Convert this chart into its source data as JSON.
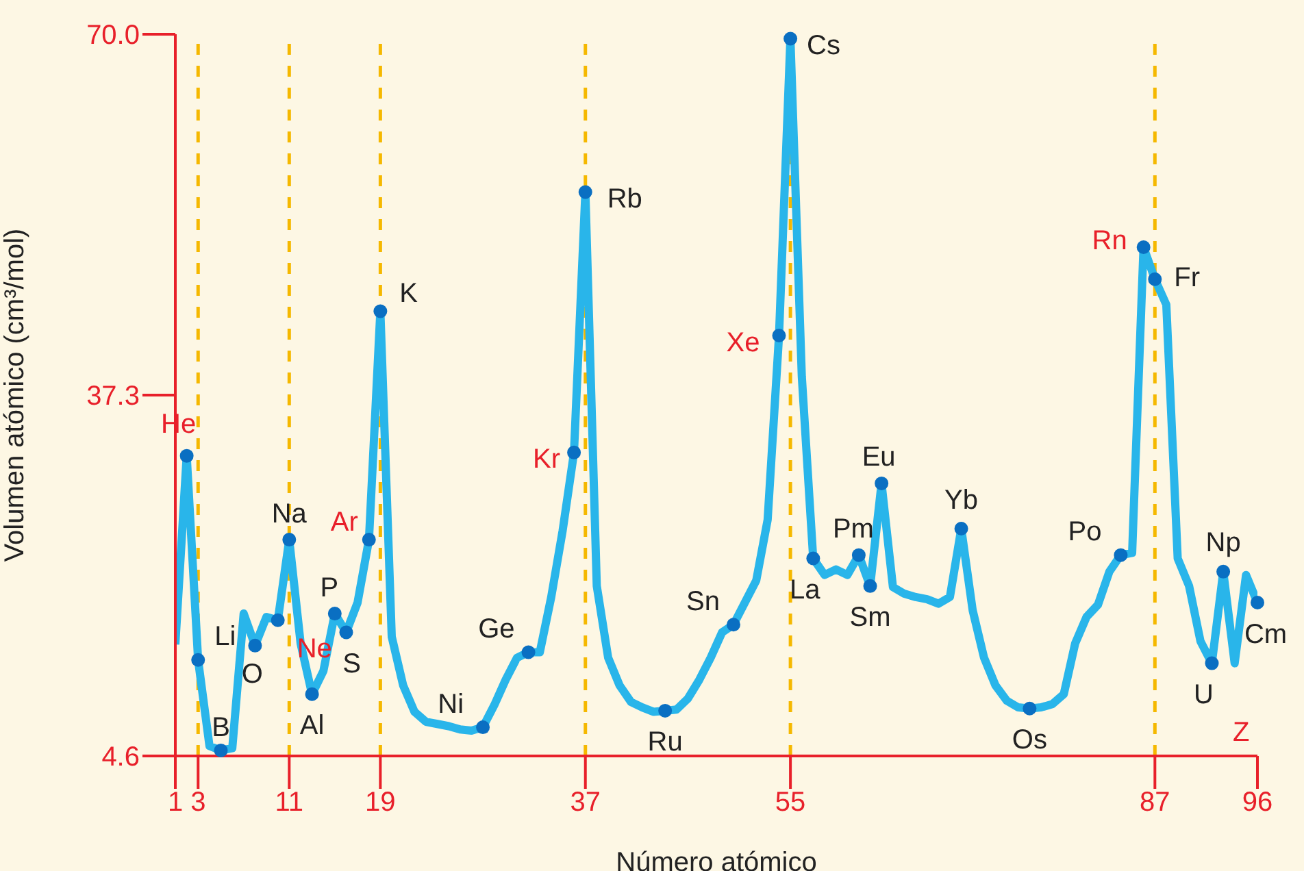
{
  "chart_data": {
    "type": "line",
    "xlabel": "Número atómico",
    "ylabel": "Volumen atómico (cm³/mol)",
    "x": [
      1,
      2,
      3,
      4,
      5,
      6,
      7,
      8,
      9,
      10,
      11,
      12,
      13,
      14,
      15,
      16,
      17,
      18,
      19,
      20,
      21,
      22,
      23,
      24,
      25,
      26,
      27,
      28,
      29,
      30,
      31,
      32,
      33,
      34,
      35,
      36,
      37,
      38,
      39,
      40,
      41,
      42,
      43,
      44,
      45,
      46,
      47,
      48,
      49,
      50,
      51,
      52,
      53,
      54,
      55,
      56,
      57,
      58,
      59,
      60,
      61,
      62,
      63,
      64,
      65,
      66,
      67,
      68,
      69,
      70,
      71,
      72,
      73,
      74,
      75,
      76,
      77,
      78,
      79,
      80,
      81,
      82,
      83,
      84,
      85,
      86,
      87,
      88,
      89,
      90,
      91,
      92,
      93,
      94,
      95,
      96
    ],
    "series": [
      {
        "color": "#29b5ea",
        "values": [
          14.7,
          31.8,
          13.3,
          5.5,
          5.1,
          5.3,
          17.5,
          14.6,
          17.2,
          16.9,
          24.2,
          14.8,
          10.2,
          12.3,
          17.5,
          15.8,
          18.5,
          24.2,
          44.9,
          15.4,
          11.0,
          8.6,
          7.7,
          7.5,
          7.3,
          7.0,
          6.9,
          7.2,
          9.2,
          11.5,
          13.5,
          14.0,
          14.0,
          19.0,
          25.0,
          32.1,
          55.7,
          20.0,
          13.5,
          11.0,
          9.5,
          9.0,
          8.6,
          8.7,
          8.8,
          9.8,
          11.5,
          13.5,
          15.8,
          16.5,
          18.5,
          20.5,
          26.0,
          42.7,
          69.6,
          39.0,
          22.5,
          21.0,
          21.5,
          21.0,
          22.8,
          20.0,
          29.3,
          19.9,
          19.3,
          19.0,
          18.8,
          18.4,
          19.0,
          25.2,
          17.8,
          13.5,
          11.0,
          9.6,
          9.0,
          8.9,
          9.0,
          9.3,
          10.2,
          14.8,
          17.2,
          18.3,
          21.3,
          22.8,
          23.0,
          50.7,
          47.8,
          45.5,
          22.5,
          20.0,
          15.0,
          13.0,
          21.3,
          13.0,
          21.0,
          18.5
        ]
      }
    ],
    "xlim": [
      1,
      96
    ],
    "xticks": [
      1,
      3,
      11,
      19,
      37,
      55,
      87,
      96
    ],
    "ylim": [
      4.6,
      70.0
    ],
    "yticks": [
      4.6,
      37.3,
      {
        "value": 70,
        "label": "70.0"
      }
    ],
    "marker": "none",
    "grid": false,
    "legend": false,
    "ref_lines": [
      {
        "axis": "x",
        "value": 3,
        "color": "#f5b800",
        "line_style": "dashed"
      },
      {
        "axis": "x",
        "value": 11,
        "color": "#f5b800",
        "line_style": "dashed"
      },
      {
        "axis": "x",
        "value": 19,
        "color": "#f5b800",
        "line_style": "dashed"
      },
      {
        "axis": "x",
        "value": 37,
        "color": "#f5b800",
        "line_style": "dashed"
      },
      {
        "axis": "x",
        "value": 55,
        "color": "#f5b800",
        "line_style": "dashed"
      },
      {
        "axis": "x",
        "value": 87,
        "color": "#f5b800",
        "line_style": "dashed"
      }
    ],
    "annotations": [
      "Z",
      {
        "text": "He",
        "x": 2,
        "y": 31.8
      },
      {
        "text": "Li",
        "x": 3,
        "y": 13.3
      },
      {
        "text": "B",
        "x": 5,
        "y": 5.1
      },
      {
        "text": "O",
        "x": 8,
        "y": 14.6
      },
      {
        "text": "Ne",
        "x": 10,
        "y": 16.9
      },
      {
        "text": "Na",
        "x": 11,
        "y": 24.2
      },
      {
        "text": "Al",
        "x": 13,
        "y": 10.2
      },
      {
        "text": "P",
        "x": 15,
        "y": 17.5
      },
      {
        "text": "S",
        "x": 16,
        "y": 15.8
      },
      {
        "text": "Ar",
        "x": 18,
        "y": 24.2
      },
      {
        "text": "K",
        "x": 19,
        "y": 44.9
      },
      {
        "text": "Ni",
        "x": 28,
        "y": 7.2
      },
      {
        "text": "Ge",
        "x": 32,
        "y": 14.0
      },
      {
        "text": "Kr",
        "x": 36,
        "y": 32.1
      },
      {
        "text": "Rb",
        "x": 37,
        "y": 55.7
      },
      {
        "text": "Ru",
        "x": 44,
        "y": 8.7
      },
      {
        "text": "Sn",
        "x": 50,
        "y": 16.5
      },
      {
        "text": "Xe",
        "x": 54,
        "y": 42.7
      },
      {
        "text": "Cs",
        "x": 55,
        "y": 69.6
      },
      {
        "text": "La",
        "x": 57,
        "y": 22.5
      },
      {
        "text": "Pm",
        "x": 61,
        "y": 22.8
      },
      {
        "text": "Sm",
        "x": 62,
        "y": 20.0
      },
      {
        "text": "Eu",
        "x": 63,
        "y": 29.3
      },
      {
        "text": "Yb",
        "x": 70,
        "y": 25.2
      },
      {
        "text": "Os",
        "x": 76,
        "y": 8.9
      },
      {
        "text": "Po",
        "x": 84,
        "y": 22.8
      },
      {
        "text": "Rn",
        "x": 86,
        "y": 50.7
      },
      {
        "text": "Fr",
        "x": 87,
        "y": 47.8
      },
      {
        "text": "U",
        "x": 92,
        "y": 13.0
      },
      {
        "text": "Np",
        "x": 93,
        "y": 21.3
      },
      {
        "text": "Cm",
        "x": 96,
        "y": 18.5
      }
    ]
  }
}
